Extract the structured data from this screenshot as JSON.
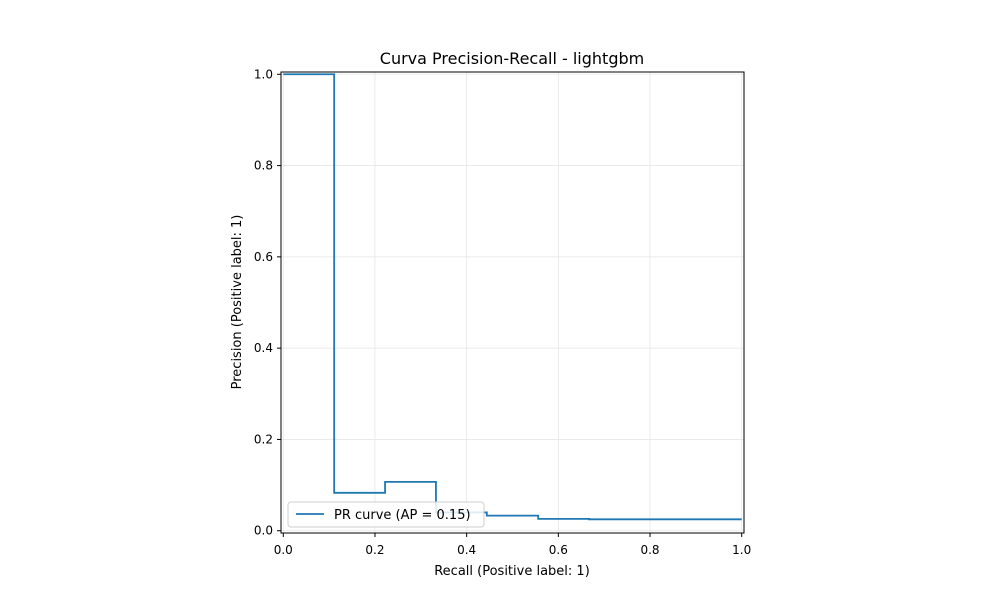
{
  "chart_data": {
    "type": "line",
    "title": "Curva Precision-Recall - lightgbm",
    "xlabel": "Recall (Positive label: 1)",
    "ylabel": "Precision (Positive label: 1)",
    "xlim": [
      -0.005,
      1.005
    ],
    "ylim": [
      -0.005,
      1.005
    ],
    "grid": true,
    "legend_position": "lower-left",
    "x_ticks": [
      {
        "value": 0.0,
        "label": "0.0"
      },
      {
        "value": 0.2,
        "label": "0.2"
      },
      {
        "value": 0.4,
        "label": "0.4"
      },
      {
        "value": 0.6,
        "label": "0.6"
      },
      {
        "value": 0.8,
        "label": "0.8"
      },
      {
        "value": 1.0,
        "label": "1.0"
      }
    ],
    "y_ticks": [
      {
        "value": 0.0,
        "label": "0.0"
      },
      {
        "value": 0.2,
        "label": "0.2"
      },
      {
        "value": 0.4,
        "label": "0.4"
      },
      {
        "value": 0.6,
        "label": "0.6"
      },
      {
        "value": 0.8,
        "label": "0.8"
      },
      {
        "value": 1.0,
        "label": "1.0"
      }
    ],
    "series": [
      {
        "name": "PR curve (AP = 0.15)",
        "color": "#1f77b4",
        "step": "post",
        "recall": [
          0.0,
          0.111,
          0.111,
          0.222,
          0.222,
          0.333,
          0.333,
          0.444,
          0.444,
          0.556,
          0.556,
          0.667,
          0.667,
          0.778,
          0.778,
          0.889,
          0.889,
          1.0
        ],
        "precision": [
          1.0,
          1.0,
          0.083,
          0.083,
          0.107,
          0.107,
          0.04,
          0.04,
          0.033,
          0.033,
          0.026,
          0.026,
          0.025,
          0.025,
          0.025,
          0.025,
          0.025,
          0.025
        ]
      }
    ]
  }
}
